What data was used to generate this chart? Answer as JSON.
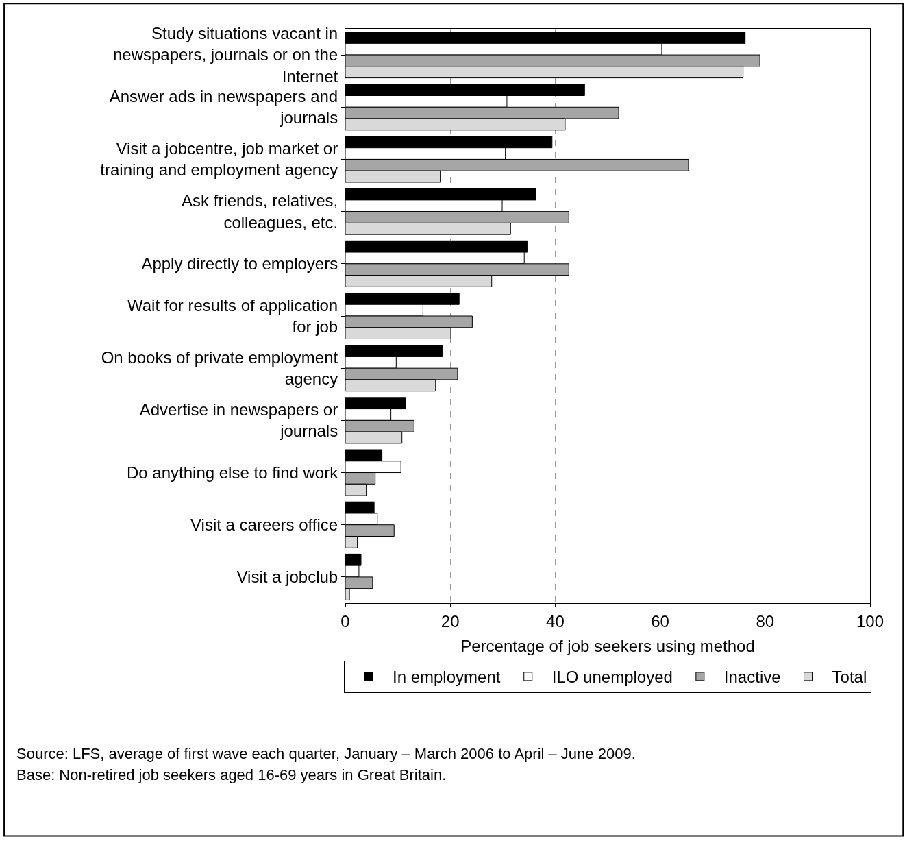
{
  "chart_data": {
    "type": "bar",
    "orientation": "horizontal",
    "xlabel": "Percentage of job seekers using method",
    "categories": [
      "Study situations vacant in newspapers, journals or on the Internet",
      "Answer ads in newspapers and journals",
      "Visit a jobcentre, job market or training and employment agency",
      "Ask friends, relatives, colleagues, etc.",
      "Apply directly to employers",
      "Wait for results of application for job",
      "On books of private employment agency",
      "Advertise in newspapers or journals",
      "Do anything else to find work",
      "Visit a careers office",
      "Visit a jobclub"
    ],
    "series": [
      {
        "name": "In employment",
        "color": "#000000",
        "values": [
          76.2,
          45.6,
          39.4,
          36.3,
          34.7,
          21.7,
          18.5,
          11.5,
          7.0,
          5.5,
          3.0
        ]
      },
      {
        "name": "ILO unemployed",
        "color": "#ffffff",
        "values": [
          60.3,
          30.8,
          30.5,
          29.9,
          34.1,
          14.8,
          9.7,
          8.7,
          10.6,
          6.1,
          2.6
        ]
      },
      {
        "name": "Inactive",
        "color": "#a6a6a6",
        "values": [
          79.0,
          52.1,
          65.4,
          42.6,
          42.6,
          24.2,
          21.4,
          13.1,
          5.7,
          9.3,
          5.2
        ]
      },
      {
        "name": "Total",
        "color": "#d9d9d9",
        "values": [
          75.8,
          41.9,
          18.1,
          31.5,
          27.9,
          20.1,
          17.2,
          10.8,
          4.0,
          2.3,
          0.8
        ]
      }
    ],
    "xlim": [
      0,
      100
    ],
    "xticks": [
      0,
      20,
      40,
      60,
      80,
      100
    ],
    "grid": "x",
    "legend": "bottom",
    "annotations": [
      "Source: LFS, average of first wave each quarter, January – March 2006 to April – June 2009.",
      "Base: Non-retired job seekers aged 16-69 years in Great Britain."
    ]
  }
}
